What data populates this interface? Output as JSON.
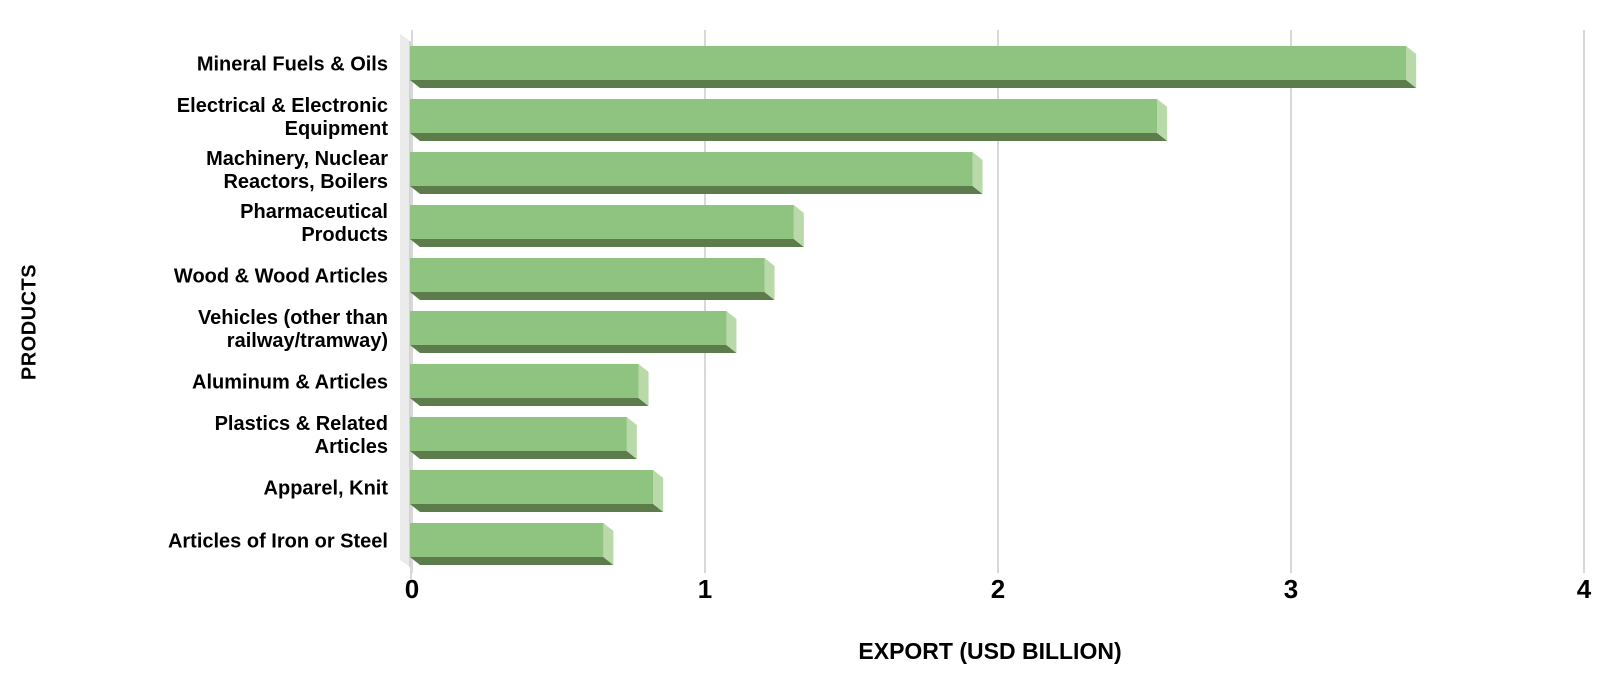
{
  "chart_data": {
    "type": "bar",
    "orientation": "horizontal",
    "title": "",
    "xlabel": "EXPORT (USD BILLION)",
    "ylabel": "PRODUCTS",
    "xlim": [
      0,
      4
    ],
    "x_ticks": [
      "0",
      "1",
      "2",
      "3",
      "4"
    ],
    "grid": true,
    "legend": "none",
    "categories": [
      "Mineral Fuels & Oils",
      "Electrical & Electronic Equipment",
      "Machinery, Nuclear Reactors, Boilers",
      "Pharmaceutical Products",
      "Wood & Wood Articles",
      "Vehicles (other than railway/tramway)",
      "Aluminum & Articles",
      "Plastics & Related Articles",
      "Apparel, Knit",
      "Articles of Iron or Steel"
    ],
    "category_lines": [
      "Mineral Fuels & Oils",
      "Electrical & Electronic\nEquipment",
      "Machinery, Nuclear\nReactors, Boilers",
      "Pharmaceutical\nProducts",
      "Wood & Wood Articles",
      "Vehicles (other than\nrailway/tramway)",
      "Aluminum & Articles",
      "Plastics & Related\nArticles",
      "Apparel, Knit",
      "Articles of Iron or Steel"
    ],
    "values": [
      3.4,
      2.55,
      1.92,
      1.31,
      1.21,
      1.08,
      0.78,
      0.74,
      0.83,
      0.66
    ],
    "colors": {
      "bar_face": "#8fc480",
      "bar_side": "#b9d9aa",
      "bar_bottom": "#5d7c4b",
      "gridline": "#d8d8d8",
      "axis_wall": "#ebebeb",
      "axis_wall_edge": "#c9c9c9",
      "text": "#000000",
      "background": "#ffffff"
    }
  }
}
